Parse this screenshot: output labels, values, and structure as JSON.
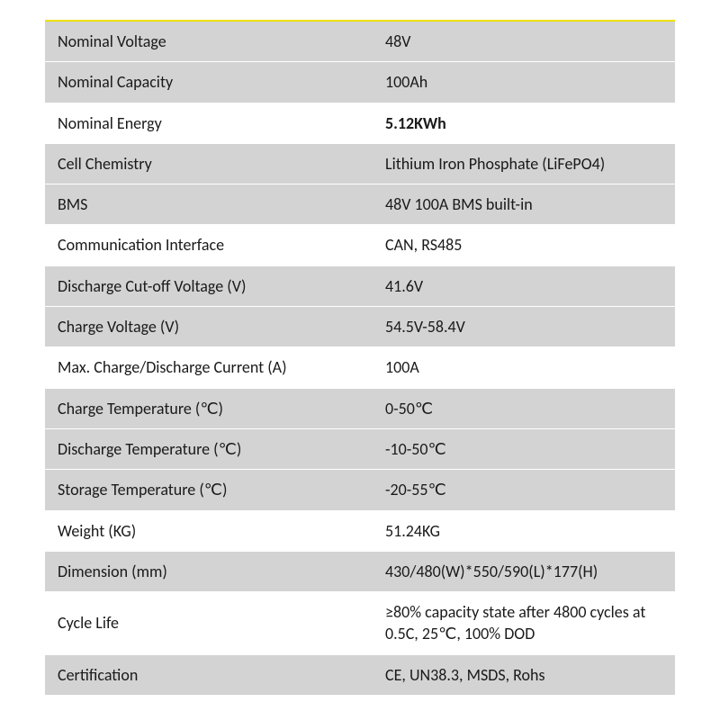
{
  "table": {
    "type": "table",
    "row_bg_alt": "#d3d3d3",
    "row_bg_plain": "#ffffff",
    "top_border_color": "#f0e000",
    "text_color": "#1a1a1a",
    "font_size": 18,
    "rows": [
      {
        "label": "Nominal Voltage",
        "value": "48V",
        "alt": true
      },
      {
        "label": "Nominal Capacity",
        "value": "100Ah",
        "alt": true
      },
      {
        "label": "Nominal Energy",
        "value": "5.12KWh",
        "alt": false,
        "value_bold": true
      },
      {
        "label": "Cell Chemistry",
        "value": "Lithium Iron Phosphate (LiFePO4)",
        "alt": true
      },
      {
        "label": "BMS",
        "value": "48V 100A BMS built-in",
        "alt": true
      },
      {
        "label": "Communication Interface",
        "value": "CAN, RS485",
        "alt": false
      },
      {
        "label": "Discharge Cut-off Voltage (V)",
        "value": "41.6V",
        "alt": true
      },
      {
        "label": "Charge Voltage (V)",
        "value": "54.5V-58.4V",
        "alt": true
      },
      {
        "label": "Max. Charge/Discharge Current (A)",
        "value": "100A",
        "alt": false
      },
      {
        "label": "Charge Temperature (℃)",
        "value": "0-50℃",
        "alt": true
      },
      {
        "label": "Discharge Temperature (℃)",
        "value": "-10-50℃",
        "alt": true
      },
      {
        "label": "Storage Temperature (℃)",
        "value": "-20-55℃",
        "alt": true
      },
      {
        "label": "Weight (KG)",
        "value": "51.24KG",
        "alt": false
      },
      {
        "label": "Dimension (mm)",
        "value": "430/480(W)*550/590(L)*177(H)",
        "alt": true
      },
      {
        "label": "Cycle Life",
        "value": "≥80% capacity state after 4800 cycles at 0.5C, 25℃, 100% DOD",
        "alt": false
      },
      {
        "label": "Certification",
        "value": "CE, UN38.3, MSDS, Rohs",
        "alt": true
      }
    ]
  }
}
